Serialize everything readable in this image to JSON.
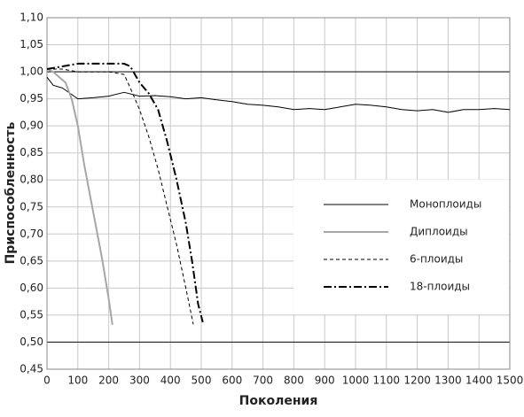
{
  "chart_data": {
    "type": "line",
    "x_label": "Поколения",
    "y_label": "Приспособленность",
    "xlim": [
      0,
      1500
    ],
    "xticks": [
      0,
      100,
      200,
      300,
      400,
      500,
      600,
      700,
      800,
      900,
      1000,
      1100,
      1200,
      1300,
      1400,
      1500
    ],
    "ylim": [
      0.45,
      1.1
    ],
    "yticks": [
      {
        "value": 0.45,
        "label": "0,45"
      },
      {
        "value": 0.5,
        "label": "0,50"
      },
      {
        "value": 0.55,
        "label": "0,55"
      },
      {
        "value": 0.6,
        "label": "0,60"
      },
      {
        "value": 0.65,
        "label": "0,65"
      },
      {
        "value": 0.7,
        "label": "0,70"
      },
      {
        "value": 0.75,
        "label": "0,75"
      },
      {
        "value": 0.8,
        "label": "0,80"
      },
      {
        "value": 0.85,
        "label": "0,85"
      },
      {
        "value": 0.9,
        "label": "0,90"
      },
      {
        "value": 0.95,
        "label": "0,95"
      },
      {
        "value": 1.0,
        "label": "1,00"
      },
      {
        "value": 1.05,
        "label": "1,05"
      },
      {
        "value": 1.1,
        "label": "1,10"
      }
    ],
    "grid": true,
    "reference_lines": [
      1.0,
      0.5
    ],
    "legend": "right",
    "series": [
      {
        "name": "Моноплоиды",
        "color": "#000000",
        "dash": "solid",
        "width": 1,
        "x": [
          0,
          20,
          50,
          100,
          150,
          200,
          250,
          300,
          350,
          400,
          450,
          500,
          550,
          600,
          650,
          700,
          750,
          800,
          850,
          900,
          950,
          1000,
          1050,
          1100,
          1150,
          1200,
          1250,
          1300,
          1350,
          1400,
          1450,
          1500
        ],
        "values": [
          0.99,
          0.975,
          0.97,
          0.95,
          0.952,
          0.955,
          0.962,
          0.955,
          0.956,
          0.954,
          0.95,
          0.952,
          0.948,
          0.945,
          0.94,
          0.938,
          0.935,
          0.93,
          0.932,
          0.93,
          0.935,
          0.94,
          0.938,
          0.935,
          0.93,
          0.928,
          0.93,
          0.925,
          0.93,
          0.93,
          0.932,
          0.93
        ]
      },
      {
        "name": "Диплоиды",
        "color": "#a6a6a6",
        "dash": "solid",
        "width": 2,
        "x": [
          0,
          20,
          40,
          60,
          80,
          100,
          120,
          140,
          160,
          180,
          200,
          212
        ],
        "values": [
          1.005,
          1.0,
          0.99,
          0.98,
          0.95,
          0.9,
          0.83,
          0.77,
          0.71,
          0.65,
          0.58,
          0.532
        ]
      },
      {
        "name": "6-плоиды",
        "color": "#000000",
        "dash": "dashed",
        "width": 1,
        "x": [
          0,
          50,
          100,
          150,
          200,
          250,
          270,
          300,
          330,
          360,
          390,
          420,
          450,
          474
        ],
        "values": [
          1.005,
          1.005,
          1.0,
          1.0,
          1.0,
          0.995,
          0.97,
          0.93,
          0.88,
          0.82,
          0.75,
          0.68,
          0.6,
          0.533
        ]
      },
      {
        "name": "18-плоиды",
        "color": "#000000",
        "dash": "dashdot",
        "width": 2,
        "x": [
          0,
          50,
          100,
          150,
          200,
          250,
          270,
          300,
          330,
          360,
          390,
          420,
          450,
          470,
          490,
          505
        ],
        "values": [
          1.005,
          1.01,
          1.015,
          1.015,
          1.015,
          1.015,
          1.01,
          0.98,
          0.96,
          0.93,
          0.87,
          0.8,
          0.72,
          0.65,
          0.57,
          0.537
        ]
      }
    ]
  }
}
